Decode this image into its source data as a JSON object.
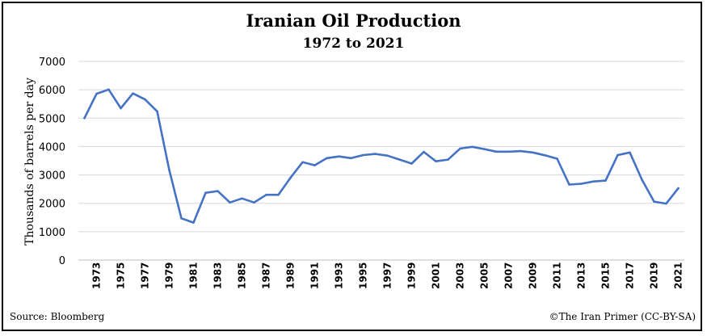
{
  "chart_data": {
    "type": "line",
    "title": "Iranian Oil Production",
    "subtitle": "1972 to 2021",
    "ylabel": "Thousands of barrels per day",
    "xlabel": "",
    "ylim": [
      0,
      7000
    ],
    "yticks": [
      0,
      1000,
      2000,
      3000,
      4000,
      5000,
      6000,
      7000
    ],
    "xticks": [
      1973,
      1975,
      1977,
      1979,
      1981,
      1983,
      1985,
      1987,
      1989,
      1991,
      1993,
      1995,
      1997,
      1999,
      2001,
      2003,
      2005,
      2007,
      2009,
      2011,
      2013,
      2015,
      2017,
      2019,
      2021
    ],
    "grid": true,
    "line_color": "#4472C4",
    "x": [
      1972,
      1973,
      1974,
      1975,
      1976,
      1977,
      1978,
      1979,
      1980,
      1981,
      1982,
      1983,
      1984,
      1985,
      1986,
      1987,
      1988,
      1989,
      1990,
      1991,
      1992,
      1993,
      1994,
      1995,
      1996,
      1997,
      1998,
      1999,
      2000,
      2001,
      2002,
      2003,
      2004,
      2005,
      2006,
      2007,
      2008,
      2009,
      2010,
      2011,
      2012,
      2013,
      2014,
      2015,
      2016,
      2017,
      2018,
      2019,
      2020,
      2021
    ],
    "values": [
      5000,
      5860,
      6010,
      5350,
      5870,
      5660,
      5240,
      3170,
      1470,
      1320,
      2370,
      2430,
      2030,
      2170,
      2030,
      2300,
      2300,
      2900,
      3450,
      3340,
      3590,
      3650,
      3590,
      3700,
      3740,
      3680,
      3540,
      3400,
      3810,
      3480,
      3540,
      3930,
      3990,
      3910,
      3820,
      3820,
      3840,
      3790,
      3690,
      3570,
      2660,
      2690,
      2770,
      2800,
      3700,
      3790,
      2830,
      2060,
      1990,
      2530
    ]
  },
  "source": "Source:  Bloomberg",
  "credit": "©The Iran Primer  (CC-BY-SA)"
}
